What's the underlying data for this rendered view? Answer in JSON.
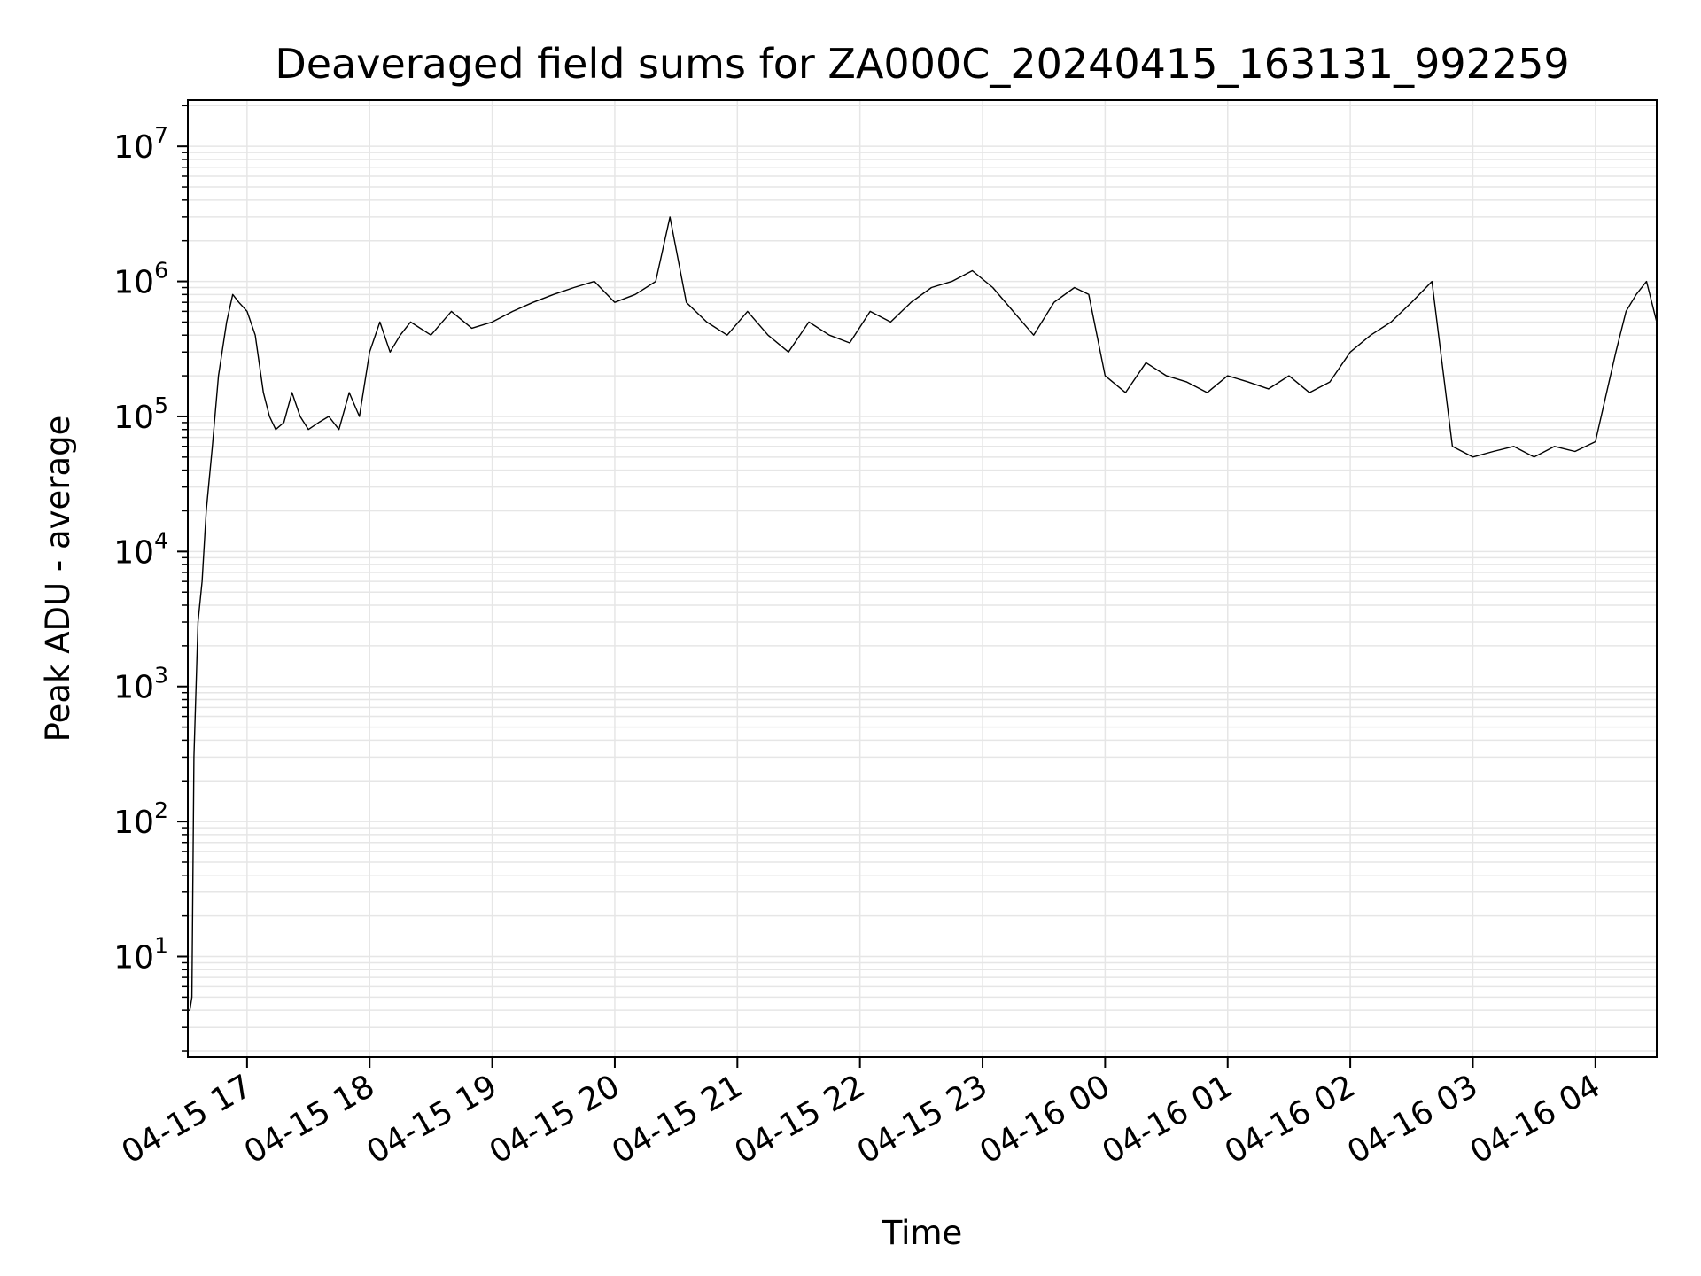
{
  "chart_data": {
    "type": "line",
    "title": "Deaveraged field sums for ZA000C_20240415_163131_992259",
    "xlabel": "Time",
    "ylabel": "Peak ADU - average",
    "yscale": "log",
    "ylim": [
      1.8,
      22000000
    ],
    "xlim": [
      "2024-04-15 16:31",
      "2024-04-16 04:30"
    ],
    "grid": true,
    "line_color": "#000000",
    "x_tick_labels": [
      "04-15 17",
      "04-15 18",
      "04-15 19",
      "04-15 20",
      "04-15 21",
      "04-15 22",
      "04-15 23",
      "04-16 00",
      "04-16 01",
      "04-16 02",
      "04-16 03",
      "04-16 04"
    ],
    "x_ticks": [
      "2024-04-15 17:00",
      "2024-04-15 18:00",
      "2024-04-15 19:00",
      "2024-04-15 20:00",
      "2024-04-15 21:00",
      "2024-04-15 22:00",
      "2024-04-15 23:00",
      "2024-04-16 00:00",
      "2024-04-16 01:00",
      "2024-04-16 02:00",
      "2024-04-16 03:00",
      "2024-04-16 04:00"
    ],
    "y_ticks": [
      10,
      100,
      1000,
      10000,
      100000,
      1000000,
      10000000
    ],
    "y_tick_labels": [
      {
        "base": "10",
        "exp": "1"
      },
      {
        "base": "10",
        "exp": "2"
      },
      {
        "base": "10",
        "exp": "3"
      },
      {
        "base": "10",
        "exp": "4"
      },
      {
        "base": "10",
        "exp": "5"
      },
      {
        "base": "10",
        "exp": "6"
      },
      {
        "base": "10",
        "exp": "7"
      }
    ],
    "series": [
      {
        "x": [
          "2024-04-15 16:31",
          "2024-04-15 16:32",
          "2024-04-15 16:33",
          "2024-04-15 16:34",
          "2024-04-15 16:36",
          "2024-04-15 16:38",
          "2024-04-15 16:40",
          "2024-04-15 16:43",
          "2024-04-15 16:46",
          "2024-04-15 16:50",
          "2024-04-15 16:53",
          "2024-04-15 16:56",
          "2024-04-15 17:00",
          "2024-04-15 17:04",
          "2024-04-15 17:08",
          "2024-04-15 17:11",
          "2024-04-15 17:14",
          "2024-04-15 17:18",
          "2024-04-15 17:22",
          "2024-04-15 17:26",
          "2024-04-15 17:30",
          "2024-04-15 17:35",
          "2024-04-15 17:40",
          "2024-04-15 17:45",
          "2024-04-15 17:50",
          "2024-04-15 17:55",
          "2024-04-15 18:00",
          "2024-04-15 18:05",
          "2024-04-15 18:10",
          "2024-04-15 18:15",
          "2024-04-15 18:20",
          "2024-04-15 18:30",
          "2024-04-15 18:40",
          "2024-04-15 18:50",
          "2024-04-15 19:00",
          "2024-04-15 19:10",
          "2024-04-15 19:20",
          "2024-04-15 19:30",
          "2024-04-15 19:40",
          "2024-04-15 19:50",
          "2024-04-15 20:00",
          "2024-04-15 20:10",
          "2024-04-15 20:20",
          "2024-04-15 20:27",
          "2024-04-15 20:35",
          "2024-04-15 20:45",
          "2024-04-15 20:55",
          "2024-04-15 21:05",
          "2024-04-15 21:15",
          "2024-04-15 21:25",
          "2024-04-15 21:35",
          "2024-04-15 21:45",
          "2024-04-15 21:55",
          "2024-04-15 22:05",
          "2024-04-15 22:15",
          "2024-04-15 22:25",
          "2024-04-15 22:35",
          "2024-04-15 22:45",
          "2024-04-15 22:55",
          "2024-04-15 23:05",
          "2024-04-15 23:15",
          "2024-04-15 23:25",
          "2024-04-15 23:35",
          "2024-04-15 23:45",
          "2024-04-15 23:52",
          "2024-04-16 00:00",
          "2024-04-16 00:10",
          "2024-04-16 00:20",
          "2024-04-16 00:30",
          "2024-04-16 00:40",
          "2024-04-16 00:50",
          "2024-04-16 01:00",
          "2024-04-16 01:10",
          "2024-04-16 01:20",
          "2024-04-16 01:30",
          "2024-04-16 01:40",
          "2024-04-16 01:50",
          "2024-04-16 02:00",
          "2024-04-16 02:10",
          "2024-04-16 02:20",
          "2024-04-16 02:30",
          "2024-04-16 02:40",
          "2024-04-16 02:50",
          "2024-04-16 03:00",
          "2024-04-16 03:10",
          "2024-04-16 03:20",
          "2024-04-16 03:30",
          "2024-04-16 03:40",
          "2024-04-16 03:50",
          "2024-04-16 04:00",
          "2024-04-16 04:10",
          "2024-04-16 04:15",
          "2024-04-16 04:20",
          "2024-04-16 04:25",
          "2024-04-16 04:30"
        ],
        "y": [
          4,
          4,
          5,
          300,
          3000,
          6000,
          20000,
          60000,
          200000,
          500000,
          800000,
          700000,
          600000,
          400000,
          150000,
          100000,
          80000,
          90000,
          150000,
          100000,
          80000,
          90000,
          100000,
          80000,
          150000,
          100000,
          300000,
          500000,
          300000,
          400000,
          500000,
          400000,
          600000,
          450000,
          500000,
          600000,
          700000,
          800000,
          900000,
          1000000,
          700000,
          800000,
          1000000,
          3000000,
          700000,
          500000,
          400000,
          600000,
          400000,
          300000,
          500000,
          400000,
          350000,
          600000,
          500000,
          700000,
          900000,
          1000000,
          1200000,
          900000,
          600000,
          400000,
          700000,
          900000,
          800000,
          200000,
          150000,
          250000,
          200000,
          180000,
          150000,
          200000,
          180000,
          160000,
          200000,
          150000,
          180000,
          300000,
          400000,
          500000,
          700000,
          1000000,
          60000,
          50000,
          55000,
          60000,
          50000,
          60000,
          55000,
          65000,
          300000,
          600000,
          800000,
          1000000,
          500000
        ]
      }
    ]
  }
}
